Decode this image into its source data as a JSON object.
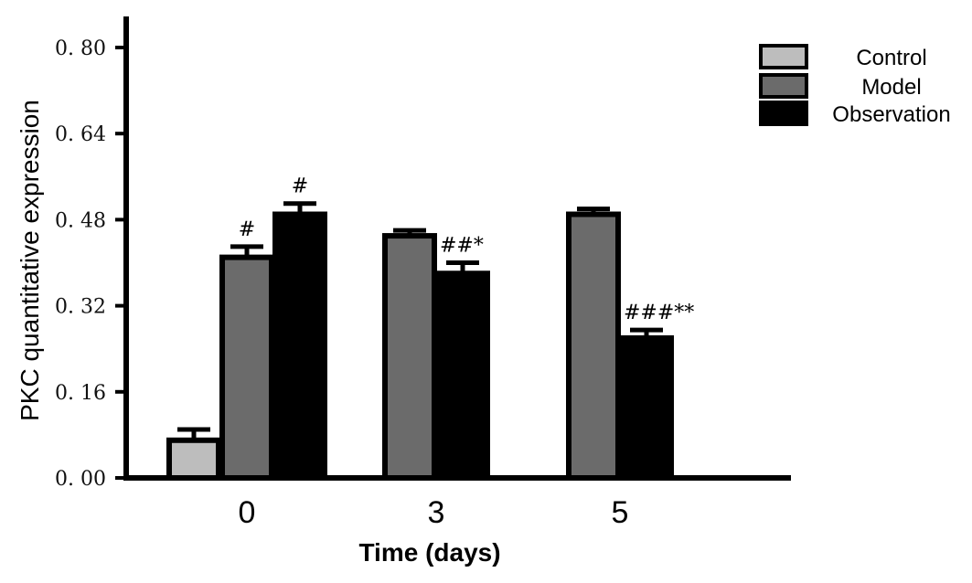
{
  "chart_data": {
    "type": "bar",
    "title": "",
    "xlabel": "Time (days)",
    "ylabel": "PKC quantitative expression",
    "ylim": [
      0,
      0.88
    ],
    "yticks": [
      "0. 00",
      "0. 16",
      "0. 32",
      "0. 48",
      "0. 64",
      "0. 80"
    ],
    "ytick_values": [
      0,
      0.16,
      0.32,
      0.48,
      0.64,
      0.8
    ],
    "categories": [
      "0",
      "3",
      "5"
    ],
    "legend_position": "top-right",
    "series": [
      {
        "name": "Control",
        "color": "#bdbdbd",
        "values": [
          0.07,
          null,
          null
        ],
        "errors": [
          0.02,
          null,
          null
        ],
        "annotations": [
          "",
          "",
          ""
        ]
      },
      {
        "name": "Model",
        "color": "#6b6b6b",
        "values": [
          0.41,
          0.45,
          0.49
        ],
        "errors": [
          0.02,
          0.01,
          0.01
        ],
        "annotations": [
          "#",
          "",
          ""
        ]
      },
      {
        "name": "Observation",
        "color": "#000000",
        "values": [
          0.49,
          0.38,
          0.26
        ],
        "errors": [
          0.02,
          0.02,
          0.015
        ],
        "annotations": [
          "#",
          "##*",
          "###**"
        ]
      }
    ]
  }
}
